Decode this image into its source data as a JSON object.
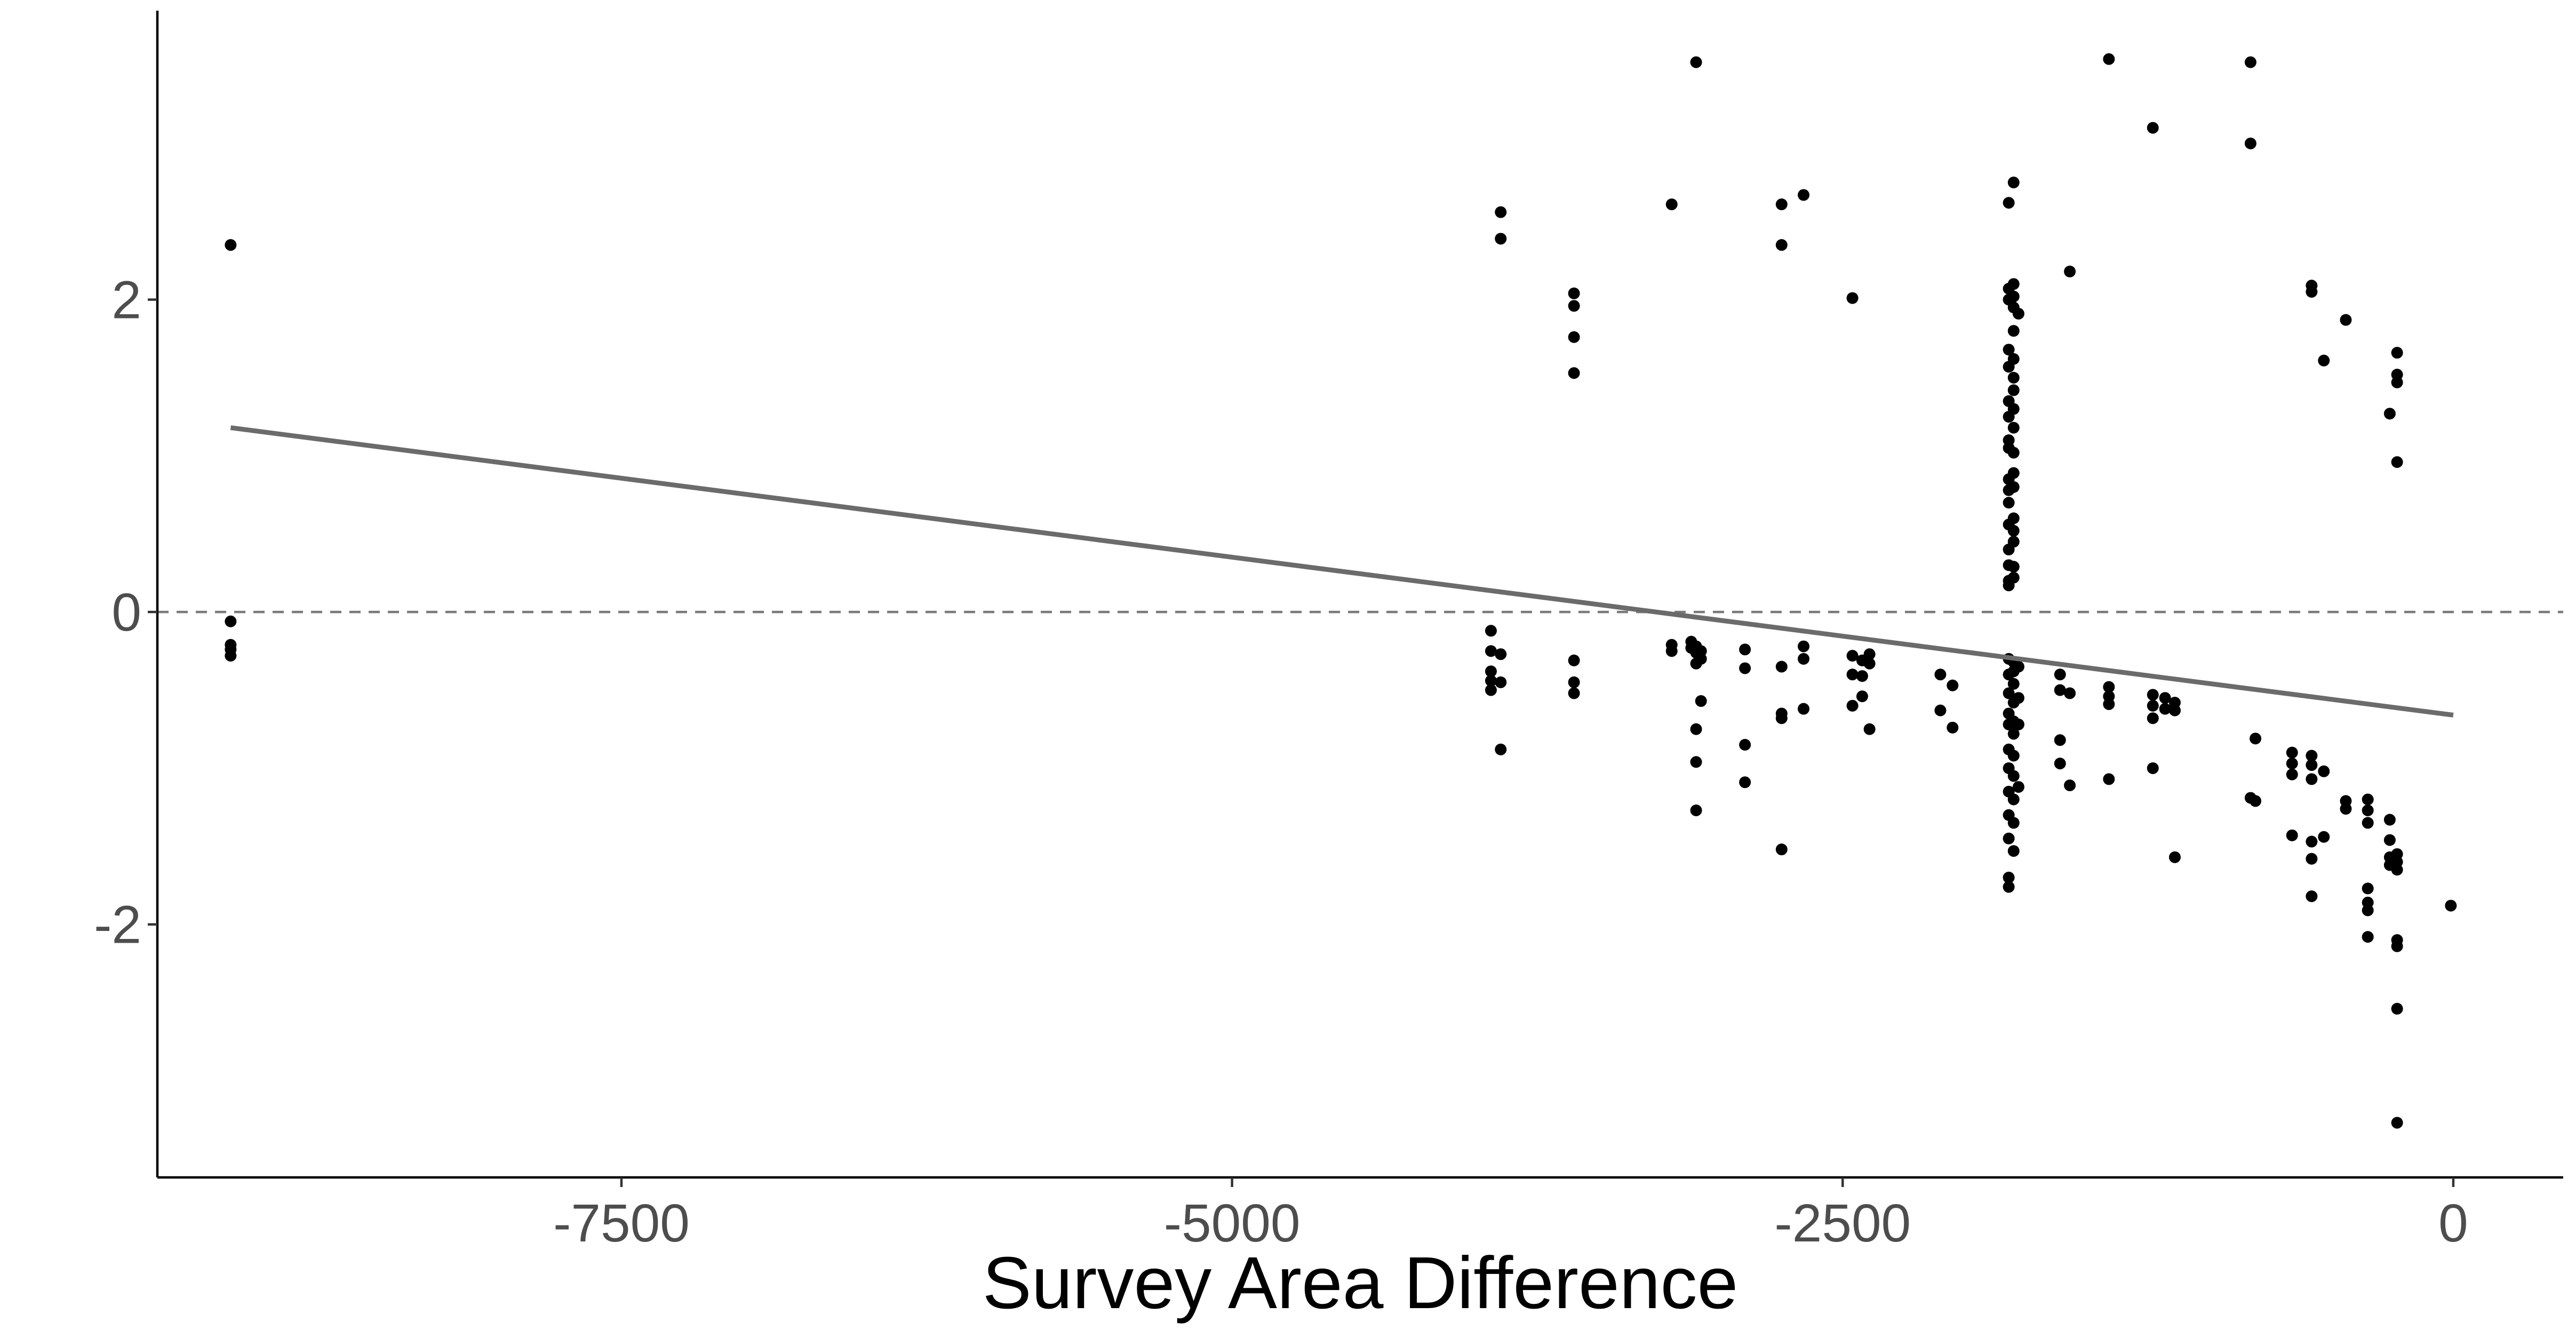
{
  "chart_data": {
    "type": "scatter",
    "title": "",
    "xlabel": "Survey Area Difference",
    "ylabel": "",
    "xlim": [
      -9400,
      450
    ],
    "ylim": [
      -3.62,
      3.85
    ],
    "x_ticks": [
      -7500,
      -5000,
      -2500,
      0
    ],
    "x_tick_labels": [
      "-7500",
      "-5000",
      "-2500",
      "0"
    ],
    "y_ticks": [
      -2,
      0,
      2
    ],
    "y_tick_labels": [
      "-2",
      "0",
      "2"
    ],
    "grid": false,
    "legend": "none",
    "reference_line": {
      "y": 0,
      "style": "dashed"
    },
    "fit_line": {
      "x": [
        -9100,
        0
      ],
      "y": [
        1.18,
        -0.66
      ]
    },
    "points": [
      [
        -9100,
        2.35
      ],
      [
        -9100,
        -0.06
      ],
      [
        -9100,
        -0.21
      ],
      [
        -9100,
        -0.24
      ],
      [
        -9100,
        -0.28
      ],
      [
        -3940,
        -0.12
      ],
      [
        -3940,
        -0.25
      ],
      [
        -3940,
        -0.38
      ],
      [
        -3940,
        -0.44
      ],
      [
        -3940,
        -0.5
      ],
      [
        -3900,
        2.56
      ],
      [
        -3900,
        2.39
      ],
      [
        -3900,
        -0.27
      ],
      [
        -3900,
        -0.45
      ],
      [
        -3900,
        -0.88
      ],
      [
        -3600,
        2.04
      ],
      [
        -3600,
        1.96
      ],
      [
        -3600,
        1.76
      ],
      [
        -3600,
        1.53
      ],
      [
        -3600,
        -0.31
      ],
      [
        -3600,
        -0.45
      ],
      [
        -3600,
        -0.52
      ],
      [
        -3200,
        2.61
      ],
      [
        -3200,
        -0.21
      ],
      [
        -3200,
        -0.25
      ],
      [
        -3120,
        -0.19
      ],
      [
        -3120,
        -0.23
      ],
      [
        -3100,
        3.52
      ],
      [
        -3100,
        -0.22
      ],
      [
        -3100,
        -0.26
      ],
      [
        -3100,
        -0.33
      ],
      [
        -3100,
        -0.75
      ],
      [
        -3100,
        -0.96
      ],
      [
        -3100,
        -1.27
      ],
      [
        -3080,
        -0.25
      ],
      [
        -3080,
        -0.3
      ],
      [
        -3080,
        -0.57
      ],
      [
        -2900,
        -0.24
      ],
      [
        -2900,
        -0.36
      ],
      [
        -2900,
        -0.85
      ],
      [
        -2900,
        -1.09
      ],
      [
        -2750,
        2.61
      ],
      [
        -2750,
        2.35
      ],
      [
        -2750,
        -0.35
      ],
      [
        -2750,
        -0.65
      ],
      [
        -2750,
        -0.68
      ],
      [
        -2750,
        -1.52
      ],
      [
        -2660,
        2.67
      ],
      [
        -2660,
        -0.22
      ],
      [
        -2660,
        -0.3
      ],
      [
        -2660,
        -0.62
      ],
      [
        -2460,
        2.01
      ],
      [
        -2460,
        -0.28
      ],
      [
        -2460,
        -0.4
      ],
      [
        -2460,
        -0.6
      ],
      [
        -2420,
        -0.31
      ],
      [
        -2420,
        -0.41
      ],
      [
        -2420,
        -0.54
      ],
      [
        -2390,
        -0.27
      ],
      [
        -2390,
        -0.33
      ],
      [
        -2390,
        -0.75
      ],
      [
        -2100,
        -0.4
      ],
      [
        -2100,
        -0.63
      ],
      [
        -2050,
        -0.47
      ],
      [
        -2050,
        -0.74
      ],
      [
        -1820,
        2.62
      ],
      [
        -1820,
        2.07
      ],
      [
        -1820,
        2.0
      ],
      [
        -1820,
        1.68
      ],
      [
        -1820,
        1.57
      ],
      [
        -1820,
        1.35
      ],
      [
        -1820,
        1.25
      ],
      [
        -1820,
        1.1
      ],
      [
        -1820,
        1.05
      ],
      [
        -1820,
        0.85
      ],
      [
        -1820,
        0.78
      ],
      [
        -1820,
        0.7
      ],
      [
        -1820,
        0.56
      ],
      [
        -1820,
        0.4
      ],
      [
        -1820,
        0.3
      ],
      [
        -1820,
        0.2
      ],
      [
        -1820,
        0.17
      ],
      [
        -1820,
        -0.3
      ],
      [
        -1820,
        -0.4
      ],
      [
        -1820,
        -0.52
      ],
      [
        -1820,
        -0.65
      ],
      [
        -1820,
        -0.72
      ],
      [
        -1820,
        -0.88
      ],
      [
        -1820,
        -1.0
      ],
      [
        -1820,
        -1.15
      ],
      [
        -1820,
        -1.3
      ],
      [
        -1820,
        -1.45
      ],
      [
        -1820,
        -1.7
      ],
      [
        -1820,
        -1.76
      ],
      [
        -1800,
        2.75
      ],
      [
        -1800,
        2.1
      ],
      [
        -1800,
        2.02
      ],
      [
        -1800,
        1.95
      ],
      [
        -1800,
        1.8
      ],
      [
        -1800,
        1.62
      ],
      [
        -1800,
        1.5
      ],
      [
        -1800,
        1.42
      ],
      [
        -1800,
        1.3
      ],
      [
        -1800,
        1.18
      ],
      [
        -1800,
        1.02
      ],
      [
        -1800,
        0.89
      ],
      [
        -1800,
        0.8
      ],
      [
        -1800,
        0.6
      ],
      [
        -1800,
        0.52
      ],
      [
        -1800,
        0.45
      ],
      [
        -1800,
        0.29
      ],
      [
        -1800,
        0.22
      ],
      [
        -1800,
        -0.32
      ],
      [
        -1800,
        -0.38
      ],
      [
        -1800,
        -0.46
      ],
      [
        -1800,
        -0.58
      ],
      [
        -1800,
        -0.7
      ],
      [
        -1800,
        -0.78
      ],
      [
        -1800,
        -0.92
      ],
      [
        -1800,
        -1.05
      ],
      [
        -1800,
        -1.2
      ],
      [
        -1800,
        -1.35
      ],
      [
        -1800,
        -1.53
      ],
      [
        -1780,
        1.91
      ],
      [
        -1780,
        -0.35
      ],
      [
        -1780,
        -0.55
      ],
      [
        -1780,
        -0.72
      ],
      [
        -1780,
        -1.12
      ],
      [
        -1610,
        -0.4
      ],
      [
        -1610,
        -0.5
      ],
      [
        -1610,
        -0.82
      ],
      [
        -1610,
        -0.97
      ],
      [
        -1570,
        2.18
      ],
      [
        -1570,
        -0.52
      ],
      [
        -1570,
        -1.11
      ],
      [
        -1410,
        3.54
      ],
      [
        -1410,
        -0.48
      ],
      [
        -1410,
        -0.54
      ],
      [
        -1410,
        -0.59
      ],
      [
        -1410,
        -1.07
      ],
      [
        -1230,
        3.1
      ],
      [
        -1230,
        -0.53
      ],
      [
        -1230,
        -0.6
      ],
      [
        -1230,
        -0.68
      ],
      [
        -1230,
        -1.0
      ],
      [
        -1180,
        -0.55
      ],
      [
        -1180,
        -0.62
      ],
      [
        -1140,
        -0.58
      ],
      [
        -1140,
        -0.63
      ],
      [
        -1140,
        -1.57
      ],
      [
        -830,
        3.52
      ],
      [
        -830,
        3.0
      ],
      [
        -830,
        -1.19
      ],
      [
        -810,
        -0.81
      ],
      [
        -810,
        -1.21
      ],
      [
        -660,
        -0.9
      ],
      [
        -660,
        -0.97
      ],
      [
        -660,
        -1.04
      ],
      [
        -660,
        -1.43
      ],
      [
        -580,
        2.09
      ],
      [
        -580,
        2.05
      ],
      [
        -580,
        -0.92
      ],
      [
        -580,
        -0.98
      ],
      [
        -580,
        -1.07
      ],
      [
        -580,
        -1.47
      ],
      [
        -580,
        -1.58
      ],
      [
        -580,
        -1.82
      ],
      [
        -530,
        1.61
      ],
      [
        -530,
        -1.02
      ],
      [
        -530,
        -1.44
      ],
      [
        -440,
        1.87
      ],
      [
        -440,
        -1.21
      ],
      [
        -440,
        -1.26
      ],
      [
        -350,
        -1.2
      ],
      [
        -350,
        -1.27
      ],
      [
        -350,
        -1.35
      ],
      [
        -350,
        -1.77
      ],
      [
        -350,
        -1.86
      ],
      [
        -350,
        -1.91
      ],
      [
        -350,
        -2.08
      ],
      [
        -260,
        1.27
      ],
      [
        -260,
        -1.33
      ],
      [
        -260,
        -1.46
      ],
      [
        -260,
        -1.57
      ],
      [
        -260,
        -1.62
      ],
      [
        -230,
        1.66
      ],
      [
        -230,
        1.52
      ],
      [
        -230,
        1.47
      ],
      [
        -230,
        0.96
      ],
      [
        -230,
        -1.55
      ],
      [
        -230,
        -1.6
      ],
      [
        -230,
        -1.65
      ],
      [
        -230,
        -2.1
      ],
      [
        -230,
        -2.14
      ],
      [
        -230,
        -2.54
      ],
      [
        -230,
        -3.27
      ],
      [
        -10,
        -1.88
      ]
    ]
  }
}
